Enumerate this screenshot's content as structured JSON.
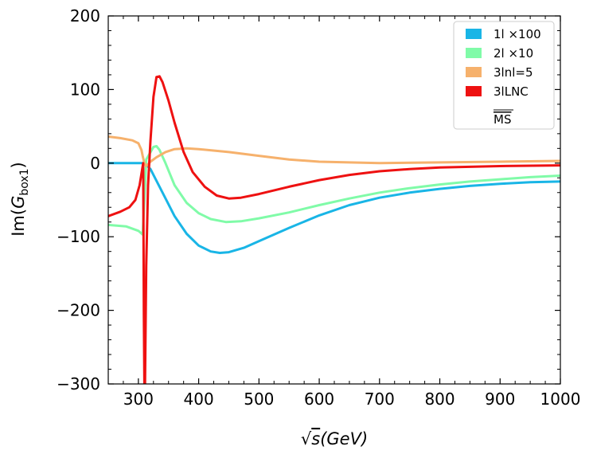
{
  "chart_data": {
    "type": "line",
    "title": "",
    "xlabel_parts": {
      "root": "√",
      "var": "s",
      "unit": "(GeV)"
    },
    "ylabel_parts": {
      "prefix": "Im(",
      "var": "G",
      "sub": "box1",
      "suffix": ")"
    },
    "xlim": [
      250,
      1000
    ],
    "ylim": [
      -300,
      200
    ],
    "x_ticks": [
      300,
      400,
      500,
      600,
      700,
      800,
      900,
      1000
    ],
    "y_ticks": [
      -300,
      -200,
      -100,
      0,
      100,
      200
    ],
    "y_tick_labels": [
      "−300",
      "−200",
      "−100",
      "0",
      "100",
      "200"
    ],
    "grid": false,
    "legend_position": "top-right",
    "series": [
      {
        "name": "1l ×100",
        "color": "#19b5e6",
        "points": [
          [
            250,
            0
          ],
          [
            300,
            0
          ],
          [
            310,
            0
          ],
          [
            320,
            -8
          ],
          [
            340,
            -40
          ],
          [
            360,
            -72
          ],
          [
            380,
            -96
          ],
          [
            400,
            -112
          ],
          [
            420,
            -120
          ],
          [
            435,
            -122
          ],
          [
            450,
            -121
          ],
          [
            475,
            -115
          ],
          [
            500,
            -106
          ],
          [
            550,
            -88
          ],
          [
            600,
            -71
          ],
          [
            650,
            -57
          ],
          [
            700,
            -47
          ],
          [
            750,
            -40
          ],
          [
            800,
            -35
          ],
          [
            850,
            -31
          ],
          [
            900,
            -28
          ],
          [
            950,
            -26
          ],
          [
            1000,
            -25
          ]
        ]
      },
      {
        "name": "2l ×10",
        "color": "#80fba8",
        "points": [
          [
            250,
            -84
          ],
          [
            280,
            -86
          ],
          [
            300,
            -92
          ],
          [
            307,
            -97
          ],
          [
            310,
            -50
          ],
          [
            313,
            5
          ],
          [
            318,
            12
          ],
          [
            325,
            22
          ],
          [
            330,
            23
          ],
          [
            335,
            18
          ],
          [
            345,
            0
          ],
          [
            360,
            -30
          ],
          [
            380,
            -54
          ],
          [
            400,
            -68
          ],
          [
            420,
            -76
          ],
          [
            445,
            -80
          ],
          [
            470,
            -79
          ],
          [
            500,
            -75
          ],
          [
            550,
            -67
          ],
          [
            600,
            -57
          ],
          [
            650,
            -48
          ],
          [
            700,
            -40
          ],
          [
            750,
            -34
          ],
          [
            800,
            -29
          ],
          [
            850,
            -25
          ],
          [
            900,
            -22
          ],
          [
            950,
            -19
          ],
          [
            1000,
            -17
          ]
        ]
      },
      {
        "name": "3lnl=5",
        "color": "#f6b16c",
        "points": [
          [
            250,
            36
          ],
          [
            270,
            34
          ],
          [
            290,
            31
          ],
          [
            300,
            27
          ],
          [
            305,
            18
          ],
          [
            307,
            10
          ],
          [
            310,
            0
          ],
          [
            313,
            -4
          ],
          [
            320,
            2
          ],
          [
            330,
            8
          ],
          [
            345,
            15
          ],
          [
            360,
            19
          ],
          [
            380,
            20
          ],
          [
            400,
            19
          ],
          [
            450,
            15
          ],
          [
            500,
            10
          ],
          [
            550,
            5
          ],
          [
            600,
            2
          ],
          [
            650,
            1
          ],
          [
            700,
            0
          ],
          [
            800,
            1
          ],
          [
            900,
            2
          ],
          [
            1000,
            3
          ]
        ]
      },
      {
        "name": "3lLNC",
        "color": "#ee1111",
        "points": [
          [
            250,
            -72
          ],
          [
            270,
            -66
          ],
          [
            285,
            -60
          ],
          [
            295,
            -50
          ],
          [
            302,
            -30
          ],
          [
            306,
            -10
          ],
          [
            308,
            0
          ],
          [
            309,
            -200
          ],
          [
            310,
            -300
          ],
          [
            311,
            -300
          ],
          [
            313,
            -140
          ],
          [
            316,
            -30
          ],
          [
            320,
            30
          ],
          [
            325,
            90
          ],
          [
            330,
            117
          ],
          [
            335,
            118
          ],
          [
            340,
            110
          ],
          [
            350,
            85
          ],
          [
            360,
            55
          ],
          [
            375,
            15
          ],
          [
            390,
            -12
          ],
          [
            410,
            -32
          ],
          [
            430,
            -44
          ],
          [
            450,
            -48
          ],
          [
            470,
            -47
          ],
          [
            500,
            -42
          ],
          [
            550,
            -32
          ],
          [
            600,
            -23
          ],
          [
            650,
            -16
          ],
          [
            700,
            -11
          ],
          [
            750,
            -8
          ],
          [
            800,
            -6
          ],
          [
            900,
            -4
          ],
          [
            1000,
            -3
          ]
        ]
      }
    ],
    "legend_extra": {
      "text": "MS",
      "overline": true
    }
  }
}
